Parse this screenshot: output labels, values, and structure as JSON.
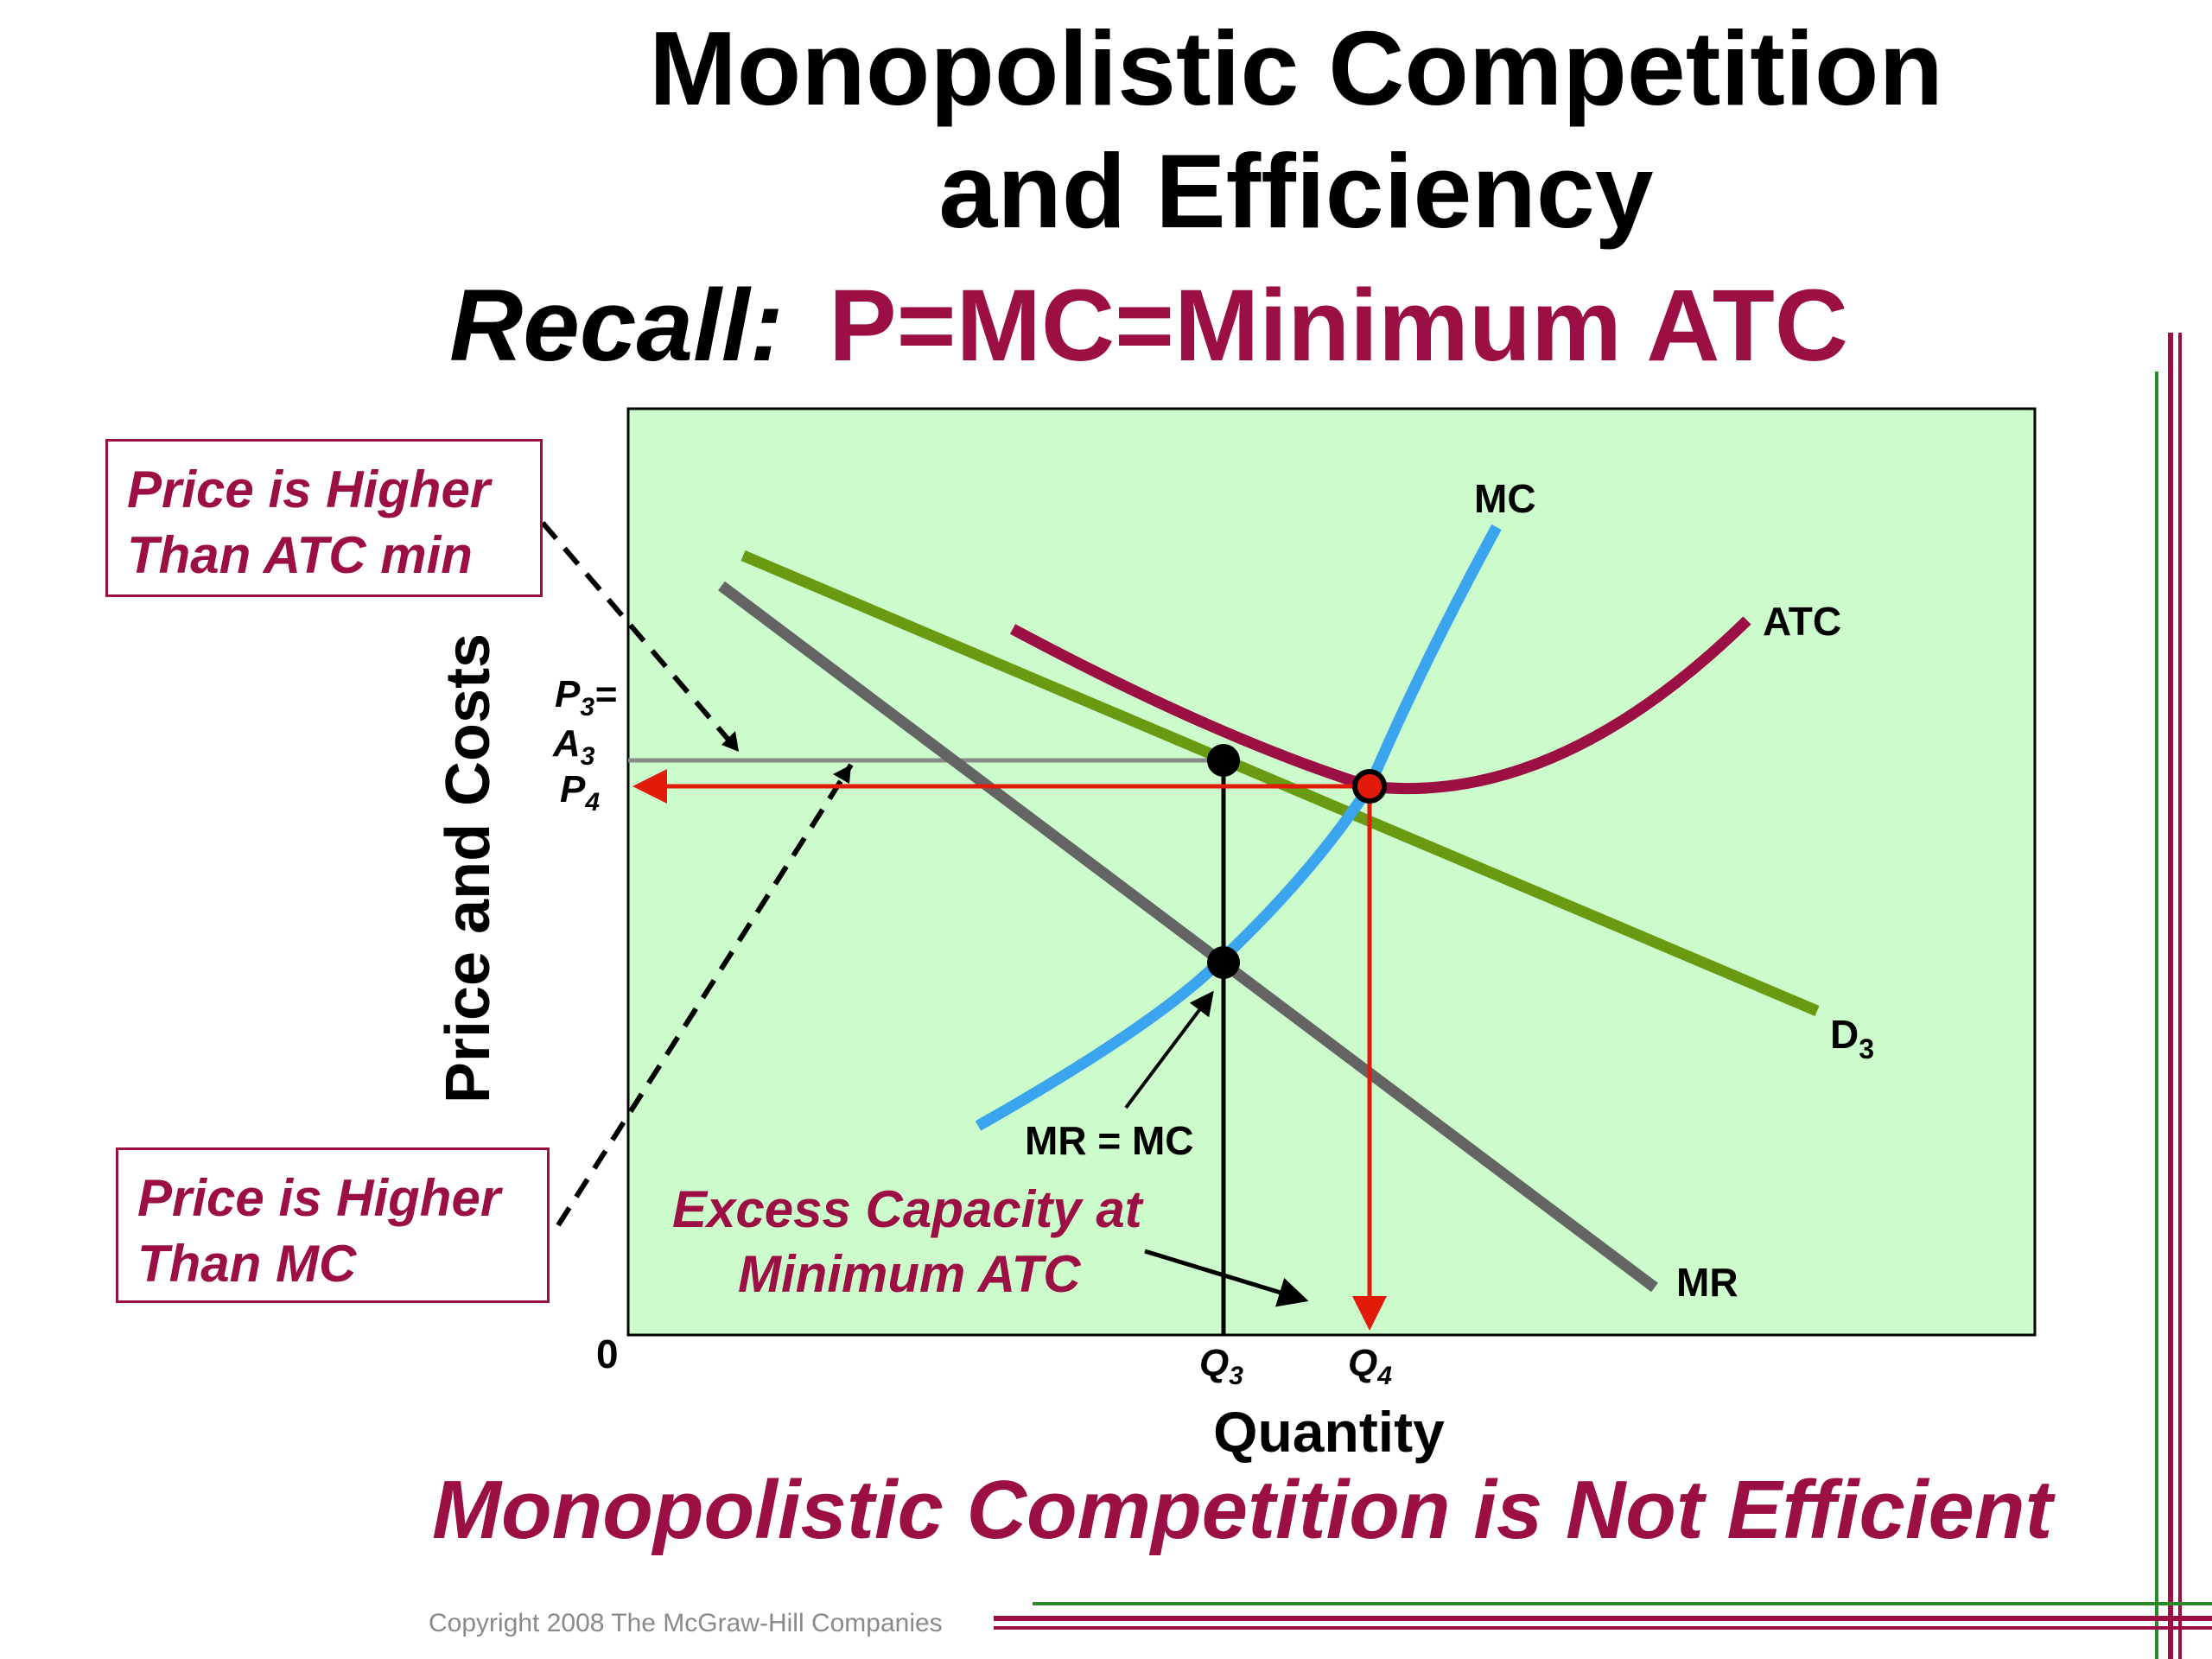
{
  "title": {
    "line1": "Monopolistic Competition",
    "line2": "and Efficiency"
  },
  "subtitle": {
    "recall": "Recall:",
    "formula": "P=MC=Minimum ATC"
  },
  "callouts": {
    "price_vs_atc": {
      "line1": "Price is Higher",
      "line2": "Than ATC min"
    },
    "price_vs_mc": {
      "line1": "Price is Higher",
      "line2": "Than MC"
    }
  },
  "axes": {
    "ylabel": "Price and Costs",
    "xlabel": "Quantity",
    "origin": "0"
  },
  "price_labels": {
    "p3": "P",
    "p3_sub": "3",
    "eq": "=",
    "a3": "A",
    "a3_sub": "3",
    "p4": "P",
    "p4_sub": "4"
  },
  "quantity_labels": {
    "q3": "Q",
    "q3_sub": "3",
    "q4": "Q",
    "q4_sub": "4"
  },
  "curves": {
    "mc": "MC",
    "atc": "ATC",
    "demand": "D",
    "demand_sub": "3",
    "mr": "MR"
  },
  "annotations": {
    "mr_eq_mc": "MR = MC",
    "excess_line1": "Excess Capacity at",
    "excess_line2": "Minimum ATC"
  },
  "conclusion": "Monopolistic Competition is Not Efficient",
  "copyright": "Copyright 2008 The McGraw-Hill Companies",
  "colors": {
    "plot_background": "#ccfccc",
    "mc": "#3aa4ee",
    "atc": "#9b0f45",
    "demand": "#6a9a12",
    "mr": "#646464",
    "price_lines": "#e21a0a",
    "brand": "#9b0f45",
    "frame_green": "#2a8a2a"
  }
}
